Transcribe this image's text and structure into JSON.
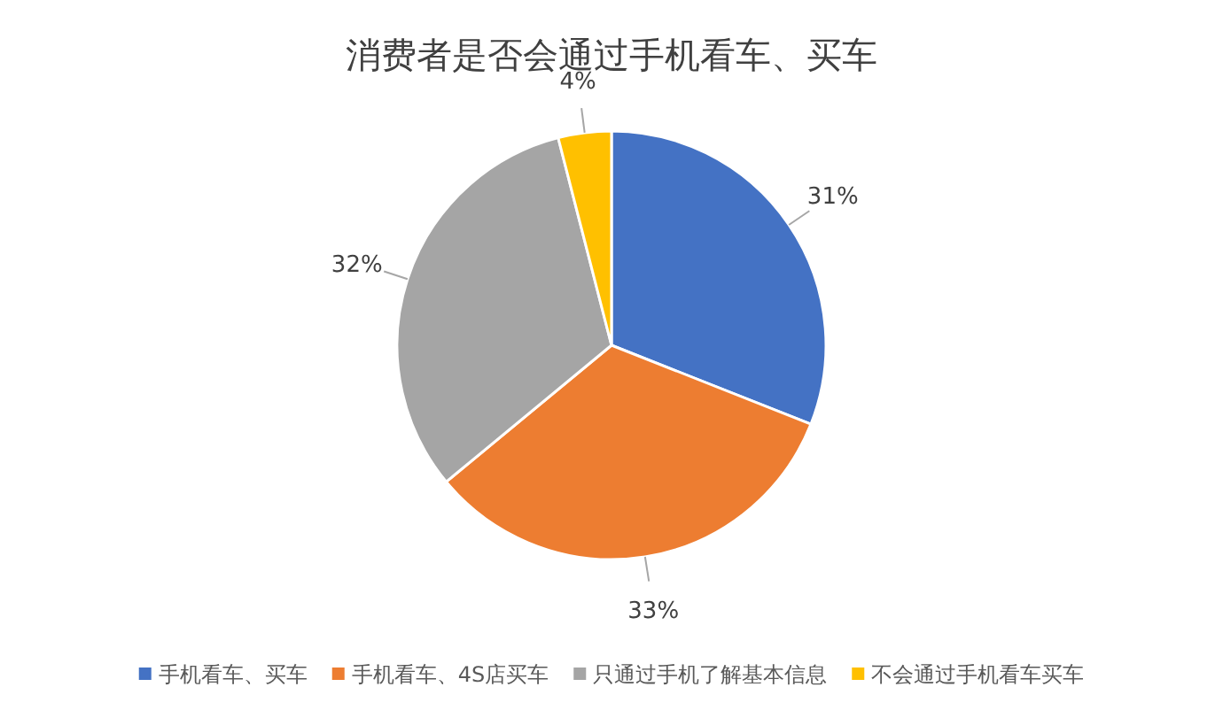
{
  "chart_data": {
    "type": "pie",
    "title": "消费者是否会通过手机看车、买车",
    "categories": [
      "手机看车、买车",
      "手机看车、4S店买车",
      "只通过手机了解基本信息",
      "不会通过手机看车买车"
    ],
    "values": [
      31,
      33,
      32,
      4
    ],
    "colors": [
      "#4472c4",
      "#ed7d31",
      "#a5a5a5",
      "#ffc000"
    ],
    "value_labels": [
      "31%",
      "33%",
      "32%",
      "4%"
    ],
    "legend": "bottom"
  }
}
